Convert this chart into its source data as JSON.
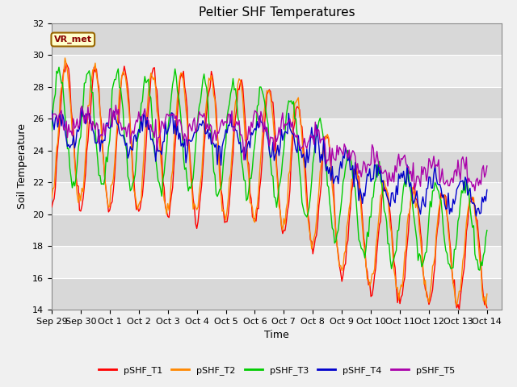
{
  "title": "Peltier SHF Temperatures",
  "xlabel": "Time",
  "ylabel": "Soil Temperature",
  "ylim": [
    14,
    32
  ],
  "xlim": [
    0,
    15.5
  ],
  "bg_color": "#f0f0f0",
  "plot_bg_color": "#f0f0f0",
  "annotation_text": "VR_met",
  "annotation_facecolor": "#ffffcc",
  "annotation_edgecolor": "#996600",
  "annotation_textcolor": "#880000",
  "series_colors": [
    "#ff0000",
    "#ff8800",
    "#00cc00",
    "#0000cc",
    "#aa00aa"
  ],
  "series_labels": [
    "pSHF_T1",
    "pSHF_T2",
    "pSHF_T3",
    "pSHF_T4",
    "pSHF_T5"
  ],
  "xtick_labels": [
    "Sep 29",
    "Sep 30",
    "Oct 1",
    "Oct 2",
    "Oct 3",
    "Oct 4",
    "Oct 5",
    "Oct 6",
    "Oct 7",
    "Oct 8",
    "Oct 9",
    "Oct 10",
    "Oct 11",
    "Oct 12",
    "Oct 13",
    "Oct 14"
  ],
  "xtick_positions": [
    0,
    1,
    2,
    3,
    4,
    5,
    6,
    7,
    8,
    9,
    10,
    11,
    12,
    13,
    14,
    15
  ],
  "ytick_positions": [
    14,
    16,
    18,
    20,
    22,
    24,
    26,
    28,
    30,
    32
  ],
  "grid_color": "#ffffff",
  "linewidth": 1.0,
  "band_colors": [
    "#e0e0e0",
    "#f0f0f0"
  ]
}
